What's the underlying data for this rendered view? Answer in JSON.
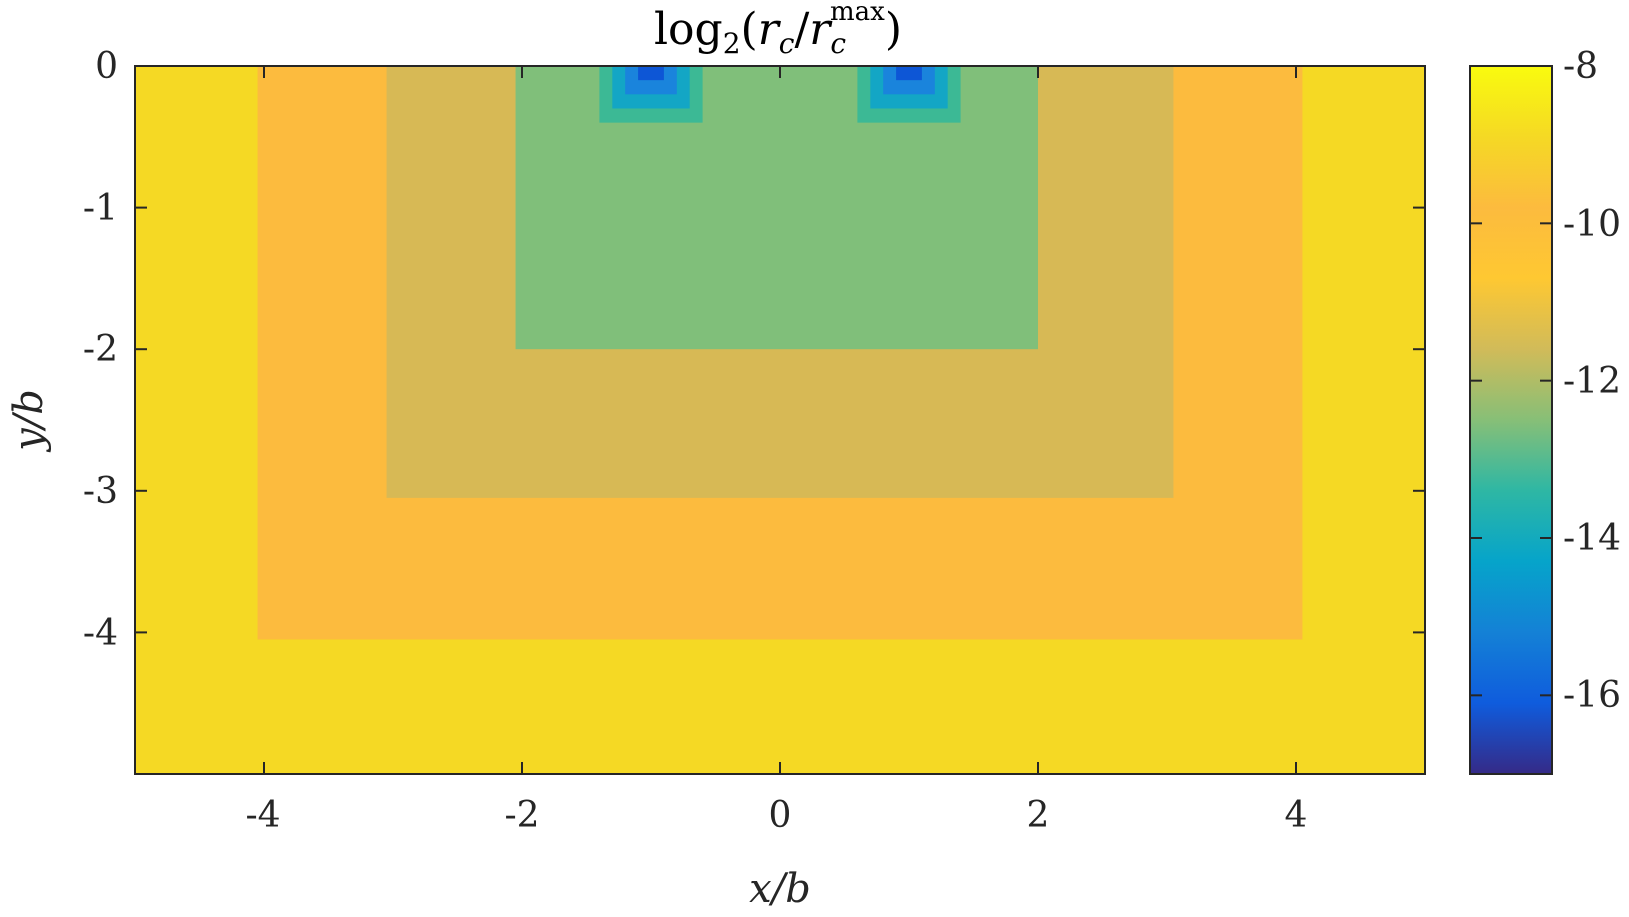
{
  "chart_data": {
    "type": "heatmap",
    "title": {
      "prefix": "log",
      "prefix_sub": "2",
      "open": "(",
      "num": "r",
      "num_sub": "c",
      "slash": "/",
      "den": "r",
      "den_sub": "c",
      "den_sup": "max",
      "close": ")"
    },
    "xlabel": {
      "var": "x",
      "rest": "/b"
    },
    "ylabel": {
      "var": "y",
      "rest": "/b"
    },
    "xlim": [
      -5,
      5
    ],
    "ylim": [
      -5,
      0
    ],
    "xticks": [
      -4,
      -2,
      0,
      2,
      4
    ],
    "xtick_labels": [
      "-4",
      "-2",
      "0",
      "2",
      "4"
    ],
    "yticks": [
      0,
      -1,
      -2,
      -3,
      -4
    ],
    "ytick_labels": [
      "0",
      "-1",
      "-2",
      "-3",
      "-4"
    ],
    "colorbar": {
      "range": [
        -17,
        -8
      ],
      "ticks": [
        -8,
        -10,
        -12,
        -14,
        -16
      ],
      "tick_labels": [
        "-8",
        "-10",
        "-12",
        "-14",
        "-16"
      ],
      "colormap": "parula"
    },
    "regions": [
      {
        "name": "background",
        "value": -8.6,
        "color": "#f5d924",
        "x": [
          -5,
          5
        ],
        "y": [
          -5,
          0
        ]
      },
      {
        "name": "level-4",
        "value": -9.3,
        "color": "#fcbb3e",
        "x": [
          -4.05,
          4.05
        ],
        "y": [
          -4.05,
          0
        ]
      },
      {
        "name": "level-3",
        "value": -10.3,
        "color": "#d7b955",
        "x": [
          -3.05,
          3.05
        ],
        "y": [
          -3.05,
          0
        ]
      },
      {
        "name": "level-2",
        "value": -11.5,
        "color": "#80bf7a",
        "x": [
          -2.05,
          2.0
        ],
        "y": [
          -2.0,
          0
        ]
      },
      {
        "name": "left-source-outer",
        "value": -12.5,
        "color": "#3cb995",
        "x": [
          -1.4,
          -0.6
        ],
        "y": [
          -0.4,
          0
        ]
      },
      {
        "name": "left-source-mid",
        "value": -13.8,
        "color": "#13a6c5",
        "x": [
          -1.3,
          -0.7
        ],
        "y": [
          -0.3,
          0
        ]
      },
      {
        "name": "left-source-inner",
        "value": -15.0,
        "color": "#1a84dc",
        "x": [
          -1.2,
          -0.8
        ],
        "y": [
          -0.2,
          0
        ]
      },
      {
        "name": "left-source-core",
        "value": -16.2,
        "color": "#0d56d6",
        "x": [
          -1.1,
          -0.9
        ],
        "y": [
          -0.1,
          0
        ]
      },
      {
        "name": "right-source-outer",
        "value": -12.5,
        "color": "#3cb995",
        "x": [
          0.6,
          1.4
        ],
        "y": [
          -0.4,
          0
        ]
      },
      {
        "name": "right-source-mid",
        "value": -13.8,
        "color": "#13a6c5",
        "x": [
          0.7,
          1.3
        ],
        "y": [
          -0.3,
          0
        ]
      },
      {
        "name": "right-source-inner",
        "value": -15.0,
        "color": "#1a84dc",
        "x": [
          0.8,
          1.2
        ],
        "y": [
          -0.2,
          0
        ]
      },
      {
        "name": "right-source-core",
        "value": -16.2,
        "color": "#0d56d6",
        "x": [
          0.9,
          1.1
        ],
        "y": [
          -0.1,
          0
        ]
      }
    ],
    "grid": false,
    "colorbar_placement": "right"
  }
}
